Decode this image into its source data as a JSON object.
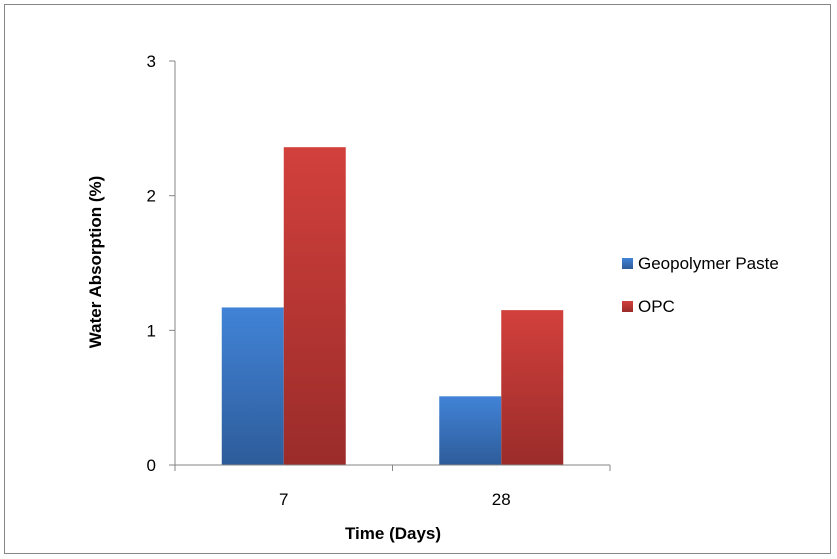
{
  "chart_data": {
    "type": "bar",
    "title": "",
    "xlabel": "Time (Days)",
    "ylabel": "Water Absorption (%)",
    "categories": [
      "7",
      "28"
    ],
    "series": [
      {
        "name": "Geopolymer Paste",
        "values": [
          1.17,
          0.51
        ],
        "color": "#3F79C6"
      },
      {
        "name": "OPC",
        "values": [
          2.36,
          1.15
        ],
        "color": "#C53A36"
      }
    ],
    "ylim": [
      0,
      3
    ],
    "yticks": [
      "0",
      "1",
      "2",
      "3"
    ],
    "grid": false,
    "legend": "right"
  }
}
